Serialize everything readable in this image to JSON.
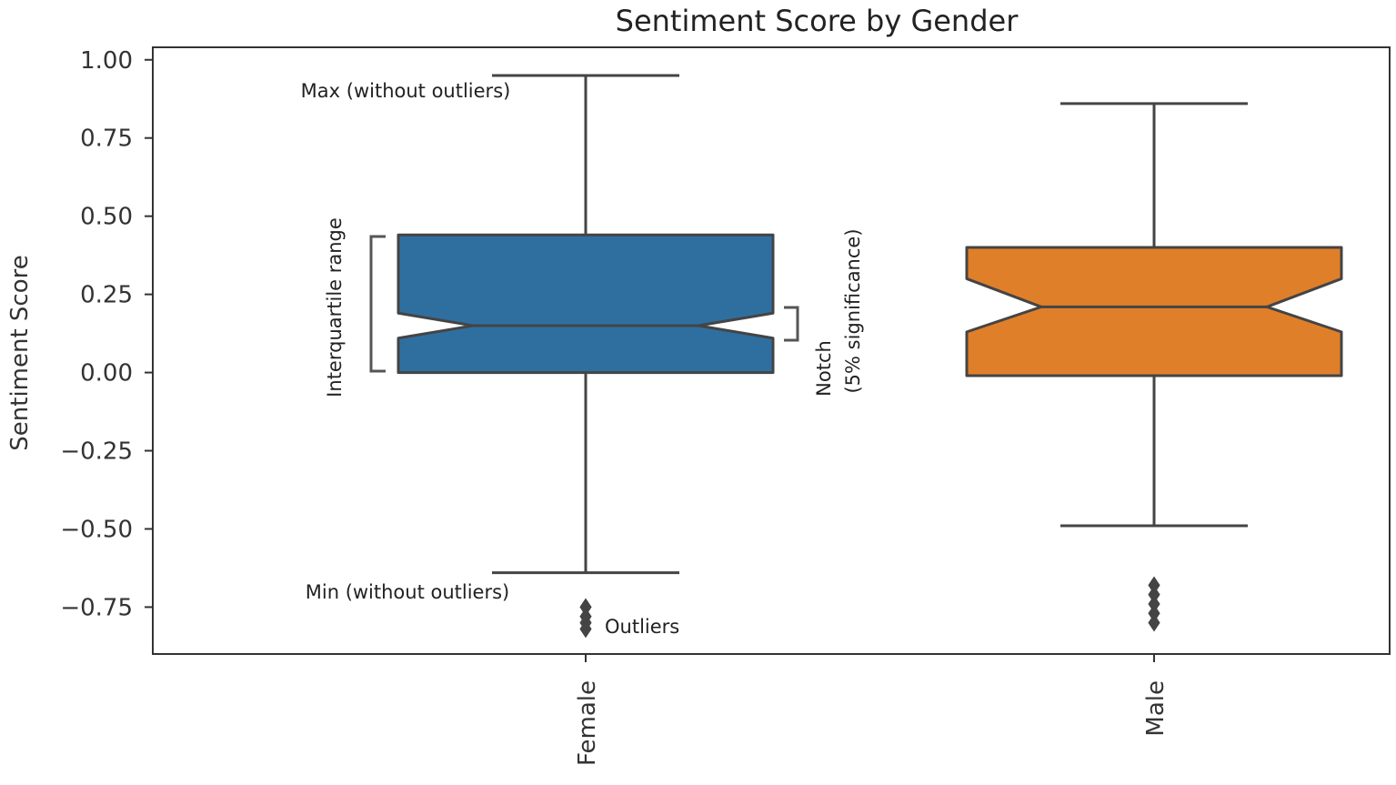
{
  "chart_data": {
    "type": "boxplot",
    "title": "Sentiment Score by Gender",
    "xlabel": "",
    "ylabel": "Sentiment Score",
    "ylim": [
      -0.9,
      1.04
    ],
    "yticks": [
      1.0,
      0.75,
      0.5,
      0.25,
      0.0,
      -0.25,
      -0.5,
      -0.75
    ],
    "ytick_labels": [
      "1.00",
      "0.75",
      "0.50",
      "0.25",
      "0.00",
      "−0.25",
      "−0.50",
      "−0.75"
    ],
    "categories": [
      "Female",
      "Male"
    ],
    "notched": true,
    "grid": false,
    "boxes": [
      {
        "category": "Female",
        "color": "#2f6fa0",
        "whisker_low": -0.64,
        "q1": 0.0,
        "notch_low": 0.11,
        "median": 0.15,
        "notch_high": 0.19,
        "q3": 0.44,
        "whisker_high": 0.95,
        "outliers": [
          -0.75,
          -0.78,
          -0.8,
          -0.82
        ]
      },
      {
        "category": "Male",
        "color": "#e07f2a",
        "whisker_low": -0.49,
        "q1": -0.01,
        "notch_low": 0.13,
        "median": 0.21,
        "notch_high": 0.3,
        "q3": 0.4,
        "whisker_high": 0.86,
        "outliers": [
          -0.68,
          -0.71,
          -0.74,
          -0.77,
          -0.8
        ]
      }
    ],
    "annotations": {
      "max": "Max (without outliers)",
      "min": "Min (without outliers)",
      "iqr": "Interquartile range",
      "notch_line1": "Notch",
      "notch_line2": "(5% significance)",
      "outliers": "Outliers"
    },
    "colors": {
      "axes": "#333333",
      "line": "#444444"
    }
  }
}
